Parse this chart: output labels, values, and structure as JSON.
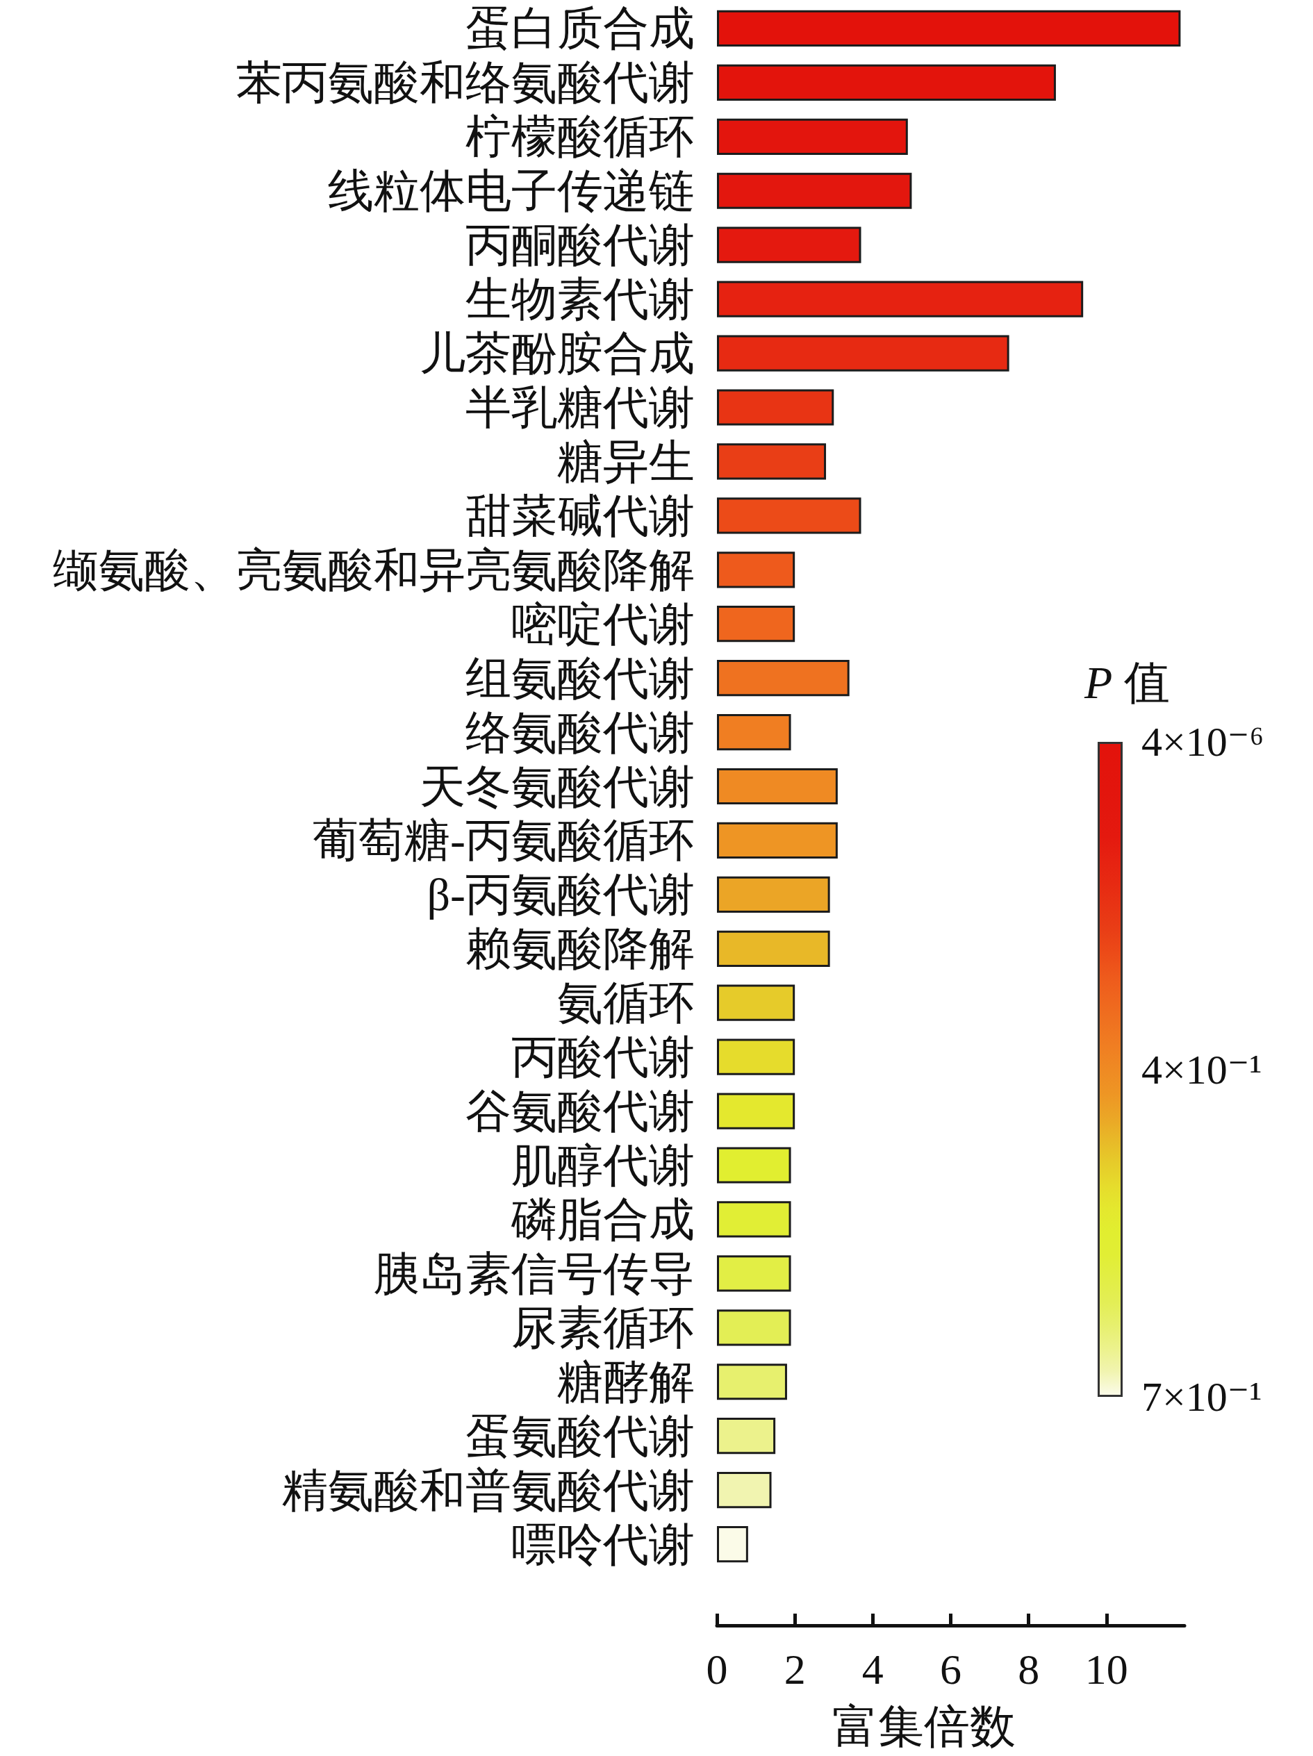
{
  "chart_data": {
    "type": "bar",
    "orientation": "horizontal",
    "categories": [
      "蛋白质合成",
      "苯丙氨酸和络氨酸代谢",
      "柠檬酸循环",
      "线粒体电子传递链",
      "丙酮酸代谢",
      "生物素代谢",
      "儿茶酚胺合成",
      "半乳糖代谢",
      "糖异生",
      "甜菜碱代谢",
      "缬氨酸、亮氨酸和异亮氨酸降解",
      "嘧啶代谢",
      "组氨酸代谢",
      "络氨酸代谢",
      "天冬氨酸代谢",
      "葡萄糖-丙氨酸循环",
      "β-丙氨酸代谢",
      "赖氨酸降解",
      "氨循环",
      "丙酸代谢",
      "谷氨酸代谢",
      "肌醇代谢",
      "磷脂合成",
      "胰岛素信号传导",
      "尿素循环",
      "糖酵解",
      "蛋氨酸代谢",
      "精氨酸和普氨酸代谢",
      "嘌呤代谢"
    ],
    "values": [
      11.9,
      8.7,
      4.9,
      5.0,
      3.7,
      9.4,
      7.5,
      3.0,
      2.8,
      3.7,
      2.0,
      2.0,
      3.4,
      1.9,
      3.1,
      3.1,
      2.9,
      2.9,
      2.0,
      2.0,
      2.0,
      1.9,
      1.9,
      1.9,
      1.9,
      1.8,
      1.5,
      1.4,
      0.8
    ],
    "colors": [
      "#e3120b",
      "#e3140c",
      "#e3150d",
      "#e3170e",
      "#e4190f",
      "#e62211",
      "#e72a12",
      "#e83414",
      "#e93e16",
      "#ec4b18",
      "#ee5a1c",
      "#ef661e",
      "#ef7220",
      "#f07e22",
      "#ef8a23",
      "#ee9524",
      "#eba526",
      "#e8b828",
      "#e6cb2a",
      "#e6dc2c",
      "#e4e82e",
      "#e1ee30",
      "#e1ee35",
      "#e2ee45",
      "#e3ee55",
      "#e7f06e",
      "#ecf28c",
      "#f1f4b0",
      "#fbfbe8"
    ],
    "xlabel": "富集倍数",
    "xlim": [
      0,
      12
    ],
    "xticks": [
      0,
      2,
      4,
      6,
      8,
      10
    ],
    "grid": false,
    "clabel": "P 值",
    "annotations": [
      "4×10⁻⁶",
      "4×10⁻¹",
      "7×10⁻¹"
    ]
  }
}
